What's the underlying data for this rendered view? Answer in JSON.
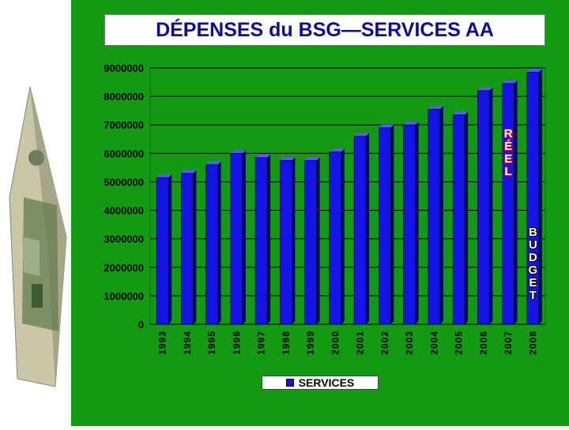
{
  "title": "DÉPENSES du BSG—SERVICES AA",
  "chart_data": {
    "type": "bar",
    "title": "DÉPENSES du BSG—SERVICES AA",
    "categories": [
      "1993",
      "1994",
      "1995",
      "1996",
      "1997",
      "1998",
      "1999",
      "2000",
      "2001",
      "2002",
      "2003",
      "2004",
      "2005",
      "2006",
      "2007",
      "2008"
    ],
    "series": [
      {
        "name": "SERVICES",
        "values": [
          5150000,
          5300000,
          5600000,
          6000000,
          5850000,
          5750000,
          5750000,
          6050000,
          6600000,
          6900000,
          7000000,
          7550000,
          7350000,
          8200000,
          8450000,
          8850000
        ]
      }
    ],
    "ylim": [
      0,
      9000000
    ],
    "yticks": [
      "0",
      "1000000",
      "2000000",
      "3000000",
      "4000000",
      "5000000",
      "6000000",
      "7000000",
      "8000000",
      "9000000"
    ],
    "grid": true,
    "legend_placement": "bottom",
    "colors": {
      "bar": "#1414e6",
      "background": "#129a12",
      "plot_area": "#129a12"
    },
    "annotations": [
      {
        "text": [
          "R",
          "É",
          "E",
          "L"
        ],
        "category": "2007"
      },
      {
        "text": [
          "B",
          "U",
          "D",
          "G",
          "E",
          "T"
        ],
        "category": "2008"
      }
    ]
  },
  "decor": {
    "left_image": "folded-dollar-bill-house"
  }
}
